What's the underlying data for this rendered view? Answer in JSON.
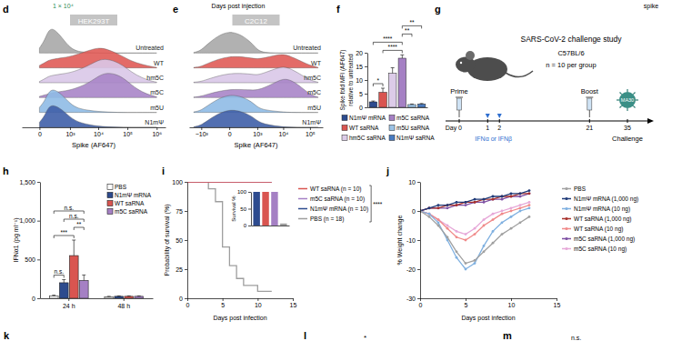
{
  "chart_data": [
    {
      "panel": "d",
      "type": "ridgeline",
      "title": "HEK293T",
      "xlabel": "Spike (AF647)",
      "log": "x",
      "tick_labels": "x",
      "xlim": [
        -300,
        2000000
      ],
      "xticks": [
        0,
        {
          "value": 1000,
          "label": "10³"
        },
        {
          "value": 10000,
          "label": "10⁴"
        },
        {
          "value": 100000,
          "label": "10⁵"
        },
        {
          "value": 1000000,
          "label": "10⁶"
        }
      ],
      "x": [
        0,
        50,
        100,
        200,
        500,
        1000,
        2000,
        5000,
        10000,
        20000,
        50000,
        100000,
        200000,
        500000,
        1000000
      ],
      "series": [
        {
          "name": "Untreated",
          "color": "#a9a9a9",
          "values": [
            0.2,
            0.5,
            0.9,
            1.0,
            0.6,
            0.2,
            0.05,
            0.02,
            0,
            0,
            0,
            0,
            0,
            0,
            0
          ]
        },
        {
          "name": "WT",
          "color": "#e05b57",
          "values": [
            0.1,
            0.2,
            0.3,
            0.35,
            0.4,
            0.45,
            0.55,
            0.7,
            0.8,
            0.75,
            0.55,
            0.35,
            0.2,
            0.08,
            0.02
          ]
        },
        {
          "name": "hm5C",
          "color": "#d9c8e8",
          "values": [
            0.05,
            0.15,
            0.25,
            0.3,
            0.35,
            0.4,
            0.5,
            0.7,
            0.9,
            0.95,
            0.8,
            0.55,
            0.3,
            0.1,
            0.02
          ]
        },
        {
          "name": "m5C",
          "color": "#a985c8",
          "values": [
            0.05,
            0.1,
            0.15,
            0.2,
            0.25,
            0.3,
            0.4,
            0.6,
            0.85,
            1.0,
            0.9,
            0.65,
            0.35,
            0.12,
            0.03
          ]
        },
        {
          "name": "m5U",
          "color": "#8fbbe6",
          "values": [
            0.2,
            0.45,
            0.8,
            0.95,
            0.7,
            0.35,
            0.15,
            0.08,
            0.04,
            0.02,
            0,
            0,
            0,
            0,
            0
          ]
        },
        {
          "name": "N1mΨ",
          "color": "#3f5fa8",
          "values": [
            0.2,
            0.45,
            0.8,
            0.9,
            0.7,
            0.4,
            0.2,
            0.1,
            0.05,
            0.02,
            0.01,
            0,
            0,
            0,
            0
          ]
        }
      ]
    },
    {
      "panel": "e",
      "type": "ridgeline",
      "title": "C2C12",
      "xlabel": "Spike (AF647)",
      "log": "x",
      "tick_labels": "x",
      "xlim": [
        -3000,
        300000
      ],
      "xticks": [
        {
          "value": -1000,
          "label": "−10³"
        },
        0,
        {
          "value": 1000,
          "label": "10³"
        },
        {
          "value": 10000,
          "label": "10⁴"
        },
        {
          "value": 100000,
          "label": "10⁵"
        }
      ],
      "x": [
        -2000,
        -1000,
        -500,
        0,
        500,
        1000,
        2000,
        5000,
        10000,
        20000,
        50000,
        100000,
        200000
      ],
      "series": [
        {
          "name": "Untreated",
          "color": "#a9a9a9",
          "values": [
            0.02,
            0.1,
            0.4,
            1.0,
            0.5,
            0.1,
            0.02,
            0,
            0,
            0,
            0,
            0,
            0
          ]
        },
        {
          "name": "WT",
          "color": "#e05b57",
          "values": [
            0.02,
            0.05,
            0.2,
            0.5,
            0.4,
            0.35,
            0.4,
            0.5,
            0.55,
            0.45,
            0.25,
            0.1,
            0.02
          ]
        },
        {
          "name": "hm5C",
          "color": "#d9c8e8",
          "values": [
            0.02,
            0.05,
            0.15,
            0.4,
            0.35,
            0.3,
            0.4,
            0.55,
            0.65,
            0.55,
            0.3,
            0.1,
            0.02
          ]
        },
        {
          "name": "m5C",
          "color": "#a985c8",
          "values": [
            0.02,
            0.05,
            0.15,
            0.35,
            0.3,
            0.3,
            0.4,
            0.6,
            0.75,
            0.7,
            0.4,
            0.12,
            0.02
          ]
        },
        {
          "name": "m5U",
          "color": "#8fbbe6",
          "values": [
            0.02,
            0.08,
            0.3,
            0.8,
            0.5,
            0.2,
            0.1,
            0.05,
            0.02,
            0,
            0,
            0,
            0
          ]
        },
        {
          "name": "N1mΨ",
          "color": "#3f5fa8",
          "values": [
            0.02,
            0.08,
            0.3,
            0.8,
            0.5,
            0.25,
            0.12,
            0.06,
            0.02,
            0.01,
            0,
            0,
            0
          ]
        }
      ]
    },
    {
      "panel": "f",
      "type": "bar",
      "ylabel": [
        "Spike fold MFI (AF647)",
        "relative to untreated"
      ],
      "categories": [
        "N1mΨ mRNA",
        "WT saRNA",
        "hm5C saRNA",
        "m5C saRNA",
        "m5U saRNA",
        "N1mΨ saRNA"
      ],
      "values": [
        2,
        5.5,
        12.5,
        18,
        1,
        1.2
      ],
      "errors": [
        0.3,
        1.5,
        2,
        1.2,
        0.2,
        0.2
      ],
      "colors": [
        "#2d4b8e",
        "#d95550",
        "#dccbe8",
        "#a580c4",
        "#9cc3e6",
        "#4a7bc0"
      ],
      "ylim": [
        0,
        20
      ],
      "yticks": [
        0,
        5,
        10,
        15,
        20
      ],
      "tick_labels": "y",
      "legend": "bottom",
      "annotations": [
        {
          "text": "*",
          "from": 0,
          "to": 1
        },
        {
          "text": "****",
          "from": 1,
          "to": 3
        },
        {
          "text": "****",
          "from": 0,
          "to": 3
        },
        {
          "text": "**",
          "from": 3,
          "to": 4
        },
        {
          "text": "**",
          "from": 3,
          "to": 5
        }
      ]
    },
    {
      "panel": "h",
      "type": "bar",
      "categories": [
        "24 h",
        "48 h"
      ],
      "ylabel": "IFNα1 (pg ml⁻¹)",
      "series": [
        {
          "name": "PBS",
          "color": "#ffffff",
          "values": [
            30,
            20
          ],
          "errors": [
            10,
            5
          ]
        },
        {
          "name": "N1mΨ mRNA",
          "color": "#2d4b8e",
          "values": [
            200,
            25
          ],
          "errors": [
            40,
            5
          ]
        },
        {
          "name": "WT saRNA",
          "color": "#d95550",
          "values": [
            550,
            25
          ],
          "errors": [
            200,
            5
          ]
        },
        {
          "name": "m5C saRNA",
          "color": "#a580c4",
          "values": [
            230,
            25
          ],
          "errors": [
            70,
            5
          ]
        }
      ],
      "ylim": [
        0,
        1500
      ],
      "yticks": [
        0,
        500,
        {
          "value": 1000,
          "label": "1,000"
        },
        {
          "value": 1500,
          "label": "1,500"
        }
      ],
      "legend": "top-right",
      "annotations": [
        {
          "text": "n.s.",
          "category": 0,
          "from": 0,
          "to": 1
        },
        {
          "text": "***",
          "category": 0,
          "from": 0,
          "to": 2
        },
        {
          "text": "**",
          "category": 0,
          "from": 2,
          "to": 3
        },
        {
          "text": "n.s.",
          "category": 0,
          "from": 1,
          "to": 3
        },
        {
          "text": "n.s.",
          "category": 0,
          "from": 0,
          "to": 3
        }
      ]
    },
    {
      "panel": "i",
      "type": "line",
      "line_style": "step",
      "xlabel": "Days post infection",
      "ylabel": "Probability of survival (%)",
      "x": [
        0,
        1,
        2,
        3,
        4,
        5,
        6,
        7,
        8,
        9,
        10,
        11,
        12
      ],
      "series": [
        {
          "name": "WT saRNA (n = 10)",
          "color": "#d95550",
          "values": [
            100,
            100,
            100,
            100,
            100,
            100,
            100,
            100,
            100,
            100,
            100,
            100,
            100
          ]
        },
        {
          "name": "m5C saRNA (n = 10)",
          "color": "#a580c4",
          "values": [
            100,
            100,
            100,
            100,
            100,
            100,
            100,
            100,
            100,
            100,
            100,
            100,
            100
          ]
        },
        {
          "name": "N1mΨ mRNA (n = 10)",
          "color": "#2d4b8e",
          "values": [
            100,
            100,
            100,
            100,
            100,
            100,
            100,
            100,
            100,
            100,
            100,
            100,
            100
          ]
        },
        {
          "name": "PBS (n = 18)",
          "color": "#9e9e9e",
          "values": [
            100,
            100,
            100,
            94,
            83,
            44,
            28,
            17,
            11,
            11,
            6,
            6,
            6
          ]
        }
      ],
      "xlim": [
        0,
        15
      ],
      "ylim": [
        0,
        100
      ],
      "xticks": [
        0,
        5,
        10,
        15
      ],
      "yticks": [
        0,
        25,
        50,
        75,
        100
      ],
      "legend": "right",
      "annotations": [
        "****"
      ],
      "inset": {
        "type": "bar",
        "ylabel": "Survival %",
        "categories": [
          null,
          null,
          null,
          null
        ],
        "values": [
          100,
          100,
          100,
          6
        ],
        "colors": [
          "#2d4b8e",
          "#d95550",
          "#a580c4",
          "#9e9e9e"
        ],
        "ylim": [
          0,
          100
        ],
        "yticks": [
          0,
          50,
          100
        ],
        "tick_labels": "y"
      }
    },
    {
      "panel": "j",
      "type": "line",
      "line_style": "solid",
      "marker": "circle",
      "xlabel": "Days post infection",
      "ylabel": "% Weight change",
      "x": [
        0,
        1,
        2,
        3,
        4,
        5,
        6,
        7,
        8,
        9,
        10,
        11,
        12
      ],
      "series": [
        {
          "name": "PBS",
          "color": "#a0a0a0",
          "values": [
            0,
            -2,
            -5,
            -9,
            -14,
            -18,
            -17,
            -14,
            -11,
            -8,
            -6,
            -4,
            -2
          ]
        },
        {
          "name": "N1mΨ mRNA (1,000 ng)",
          "color": "#1f3a78",
          "values": [
            0,
            1,
            2,
            2,
            3,
            3,
            4,
            4,
            5,
            5,
            6,
            6,
            7
          ]
        },
        {
          "name": "N1mΨ mRNA (10 ng)",
          "color": "#7fb0e0",
          "values": [
            0,
            -1,
            -4,
            -10,
            -16,
            -20,
            -18,
            -12,
            -7,
            -4,
            -2,
            0,
            1
          ]
        },
        {
          "name": "WT saRNA (1,000 ng)",
          "color": "#a8322d",
          "values": [
            0,
            1,
            1,
            2,
            2,
            3,
            3,
            4,
            4,
            5,
            5,
            6,
            6
          ]
        },
        {
          "name": "WT saRNA (10 ng)",
          "color": "#f08a8a",
          "values": [
            0,
            -1,
            -3,
            -6,
            -9,
            -10,
            -8,
            -5,
            -3,
            -1,
            0,
            1,
            2
          ]
        },
        {
          "name": "m5C saRNA (1,000 ng)",
          "color": "#7d4fa3",
          "values": [
            0,
            1,
            1,
            1,
            2,
            2,
            3,
            3,
            4,
            4,
            5,
            5,
            6
          ]
        },
        {
          "name": "m5C saRNA (10 ng)",
          "color": "#e6a8d8",
          "values": [
            0,
            -1,
            -3,
            -5,
            -7,
            -8,
            -6,
            -3,
            -1,
            0,
            1,
            2,
            3
          ]
        }
      ],
      "xlim": [
        0,
        15
      ],
      "ylim": [
        -30,
        10
      ],
      "xticks": [
        0,
        5,
        10,
        15
      ],
      "yticks": [
        -30,
        -20,
        -10,
        0,
        10
      ],
      "legend": "right"
    }
  ],
  "diagram": {
    "panel": "g",
    "title": "SARS-CoV-2 challenge study",
    "strain": "C57BL/6",
    "group_size": "n = 10 per group",
    "ticks": [
      {
        "value": 0,
        "label": "Day 0"
      },
      {
        "value": 1,
        "label": "1"
      },
      {
        "value": 2,
        "label": "2"
      },
      {
        "value": 21,
        "label": "21"
      },
      {
        "value": 35,
        "label": "35"
      }
    ],
    "events": [
      {
        "day": 0,
        "label": "Prime"
      },
      {
        "day": 21,
        "label": "Boost"
      },
      {
        "day": 35,
        "label": "Challenge"
      }
    ],
    "treatment": {
      "days": [
        1,
        2
      ],
      "label": "IFNα or IFNβ"
    },
    "virus": "MA30"
  },
  "fragments": {
    "top": [
      "1 × 10⁴",
      "Days post injection",
      "spike"
    ],
    "bottom": [
      "k",
      "l",
      "*",
      "m",
      "n.s."
    ]
  }
}
